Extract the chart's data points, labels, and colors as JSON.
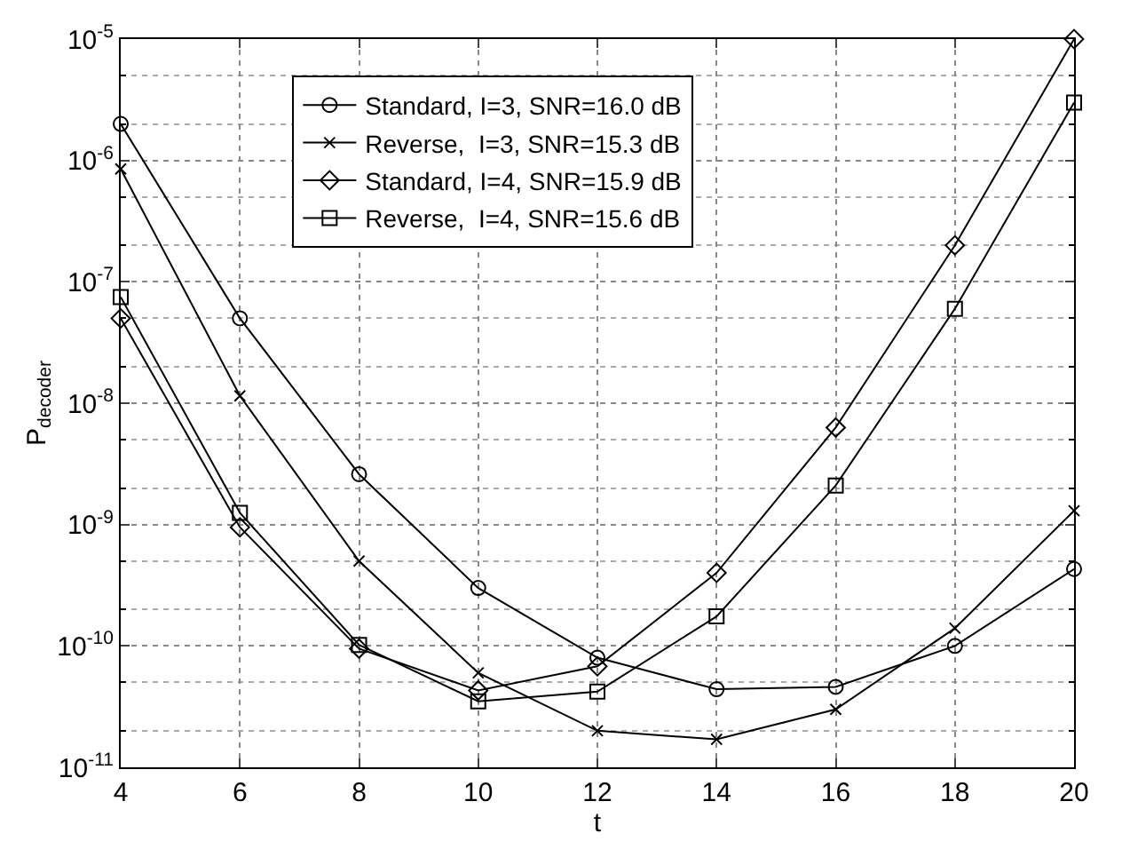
{
  "chart_data": {
    "type": "line",
    "xlabel": "t",
    "ylabel": "P$_{decoder}$",
    "x": [
      4,
      6,
      8,
      10,
      12,
      14,
      16,
      18,
      20
    ],
    "series": [
      {
        "name": "Standard, I=3, SNR=16.0 dB",
        "color": "#000000",
        "marker": "circle",
        "values": [
          2e-06,
          5e-08,
          2.6e-09,
          3e-10,
          8e-11,
          4.4e-11,
          4.6e-11,
          1e-10,
          4.3e-10
        ]
      },
      {
        "name": "Reverse,  I=3, SNR=15.3 dB",
        "color": "#000000",
        "marker": "cross",
        "values": [
          8.5e-07,
          1.15e-08,
          5e-10,
          6e-11,
          2e-11,
          1.7e-11,
          3e-11,
          1.4e-10,
          1.3e-09
        ]
      },
      {
        "name": "Standard, I=4, SNR=15.9 dB",
        "color": "#000000",
        "marker": "diamond",
        "values": [
          5e-08,
          9.5e-10,
          9.5e-11,
          4.3e-11,
          6.8e-11,
          4e-10,
          6.3e-09,
          2e-07,
          1e-05
        ]
      },
      {
        "name": "Reverse,  I=4, SNR=15.6 dB",
        "color": "#000000",
        "marker": "square",
        "values": [
          7.5e-08,
          1.25e-09,
          1.02e-10,
          3.5e-11,
          4.2e-11,
          1.75e-10,
          2.1e-09,
          6e-08,
          3e-06
        ]
      }
    ],
    "log": "y",
    "line_style": "solid",
    "grid": true,
    "legend": "top",
    "xlim": [
      4,
      20
    ],
    "xticks": [
      4,
      6,
      8,
      10,
      12,
      14,
      16,
      18,
      20
    ],
    "ylim": [
      1e-11,
      1e-05
    ],
    "yticks": [
      {
        "value": 1e-11,
        "label": "10$^{-11}$"
      },
      {
        "value": 1e-10,
        "label": "10$^{-10}$"
      },
      {
        "value": 1e-09,
        "label": "10$^{-9}$"
      },
      {
        "value": 1e-08,
        "label": "10$^{-8}$"
      },
      {
        "value": 1e-07,
        "label": "10$^{-7}$"
      },
      {
        "value": 1e-06,
        "label": "10$^{-6}$"
      },
      {
        "value": 1e-05,
        "label": "10$^{-5}$"
      }
    ]
  }
}
